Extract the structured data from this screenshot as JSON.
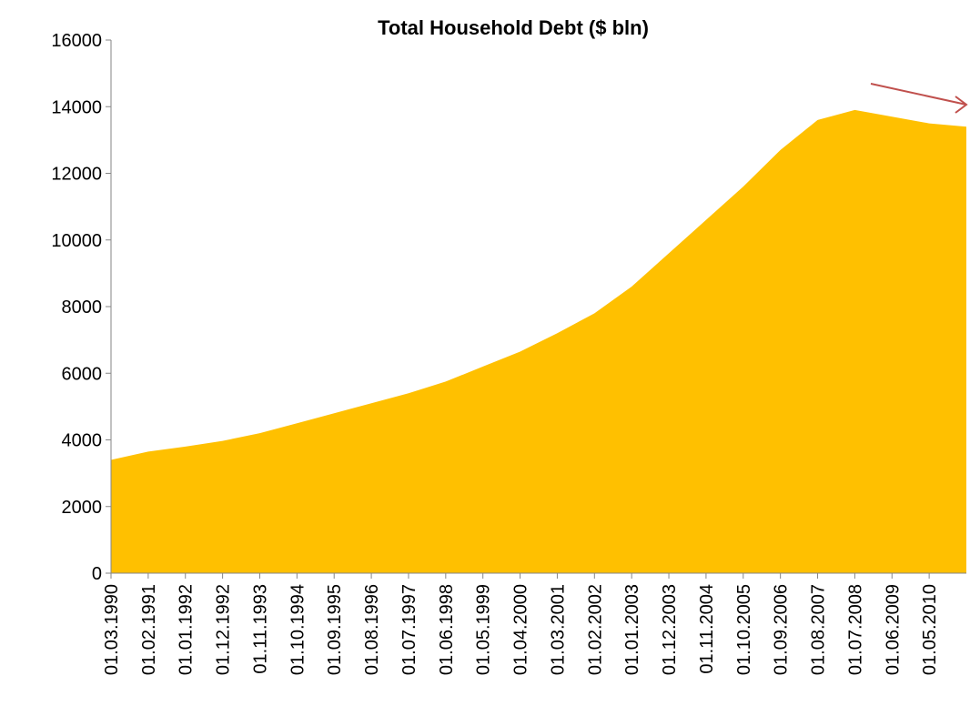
{
  "chart_data": {
    "type": "area",
    "title": "Total Household Debt ($ bln)",
    "categories": [
      "01.03.1990",
      "01.02.1991",
      "01.01.1992",
      "01.12.1992",
      "01.11.1993",
      "01.10.1994",
      "01.09.1995",
      "01.08.1996",
      "01.07.1997",
      "01.06.1998",
      "01.05.1999",
      "01.04.2000",
      "01.03.2001",
      "01.02.2002",
      "01.01.2003",
      "01.12.2003",
      "01.11.2004",
      "01.10.2005",
      "01.09.2006",
      "01.08.2007",
      "01.07.2008",
      "01.06.2009",
      "01.05.2010",
      null
    ],
    "values": [
      3400,
      3650,
      3800,
      3970,
      4200,
      4500,
      4800,
      5100,
      5400,
      5750,
      6200,
      6650,
      7200,
      7800,
      8600,
      9600,
      10600,
      11600,
      12700,
      13600,
      13900,
      13700,
      13500,
      13400
    ],
    "color": "#ffc000",
    "ylim": [
      0,
      16000
    ],
    "yticks": [
      0,
      2000,
      4000,
      6000,
      8000,
      10000,
      12000,
      14000,
      16000
    ],
    "grid": false
  }
}
